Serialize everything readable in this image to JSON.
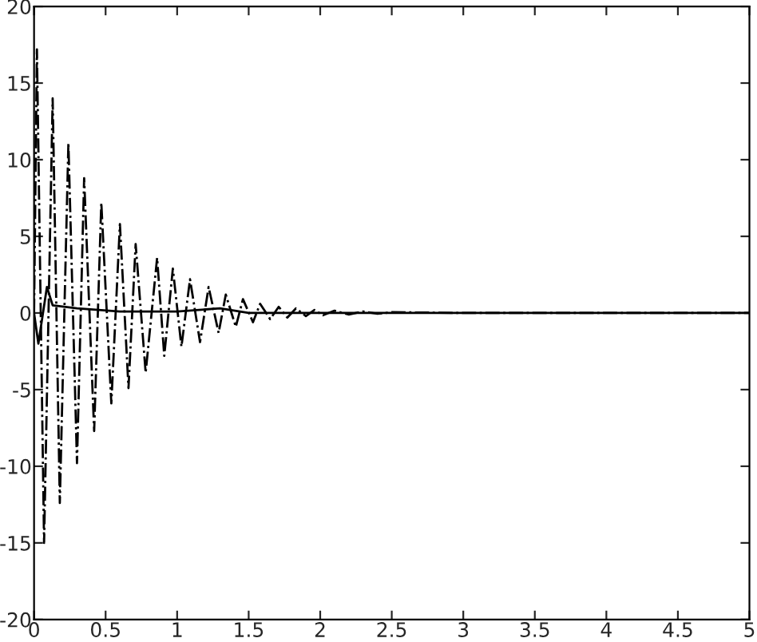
{
  "chart_data": {
    "type": "line",
    "xlim": [
      0,
      5
    ],
    "ylim": [
      -20,
      20
    ],
    "xticks": [
      0,
      0.5,
      1,
      1.5,
      2,
      2.5,
      3,
      3.5,
      4,
      4.5,
      5
    ],
    "yticks": [
      -20,
      -15,
      -10,
      -5,
      0,
      5,
      10,
      15,
      20
    ],
    "grid": false,
    "legend": false,
    "marker": "none",
    "series": [
      {
        "color": "#000000",
        "line_style": "dashed",
        "x": [
          0,
          0.02,
          0.07,
          0.13,
          0.18,
          0.24,
          0.3,
          0.35,
          0.42,
          0.47,
          0.54,
          0.6,
          0.66,
          0.71,
          0.78,
          0.86,
          0.91,
          0.97,
          1.03,
          1.09,
          1.16,
          1.22,
          1.29,
          1.34,
          1.41,
          1.46,
          1.53,
          1.58,
          1.65,
          1.71,
          1.77,
          1.83,
          1.9,
          1.96,
          2.02,
          2.1,
          2.2,
          2.3,
          2.4,
          2.5,
          3,
          5
        ],
        "values": [
          0,
          17.2,
          -15,
          14,
          -12.4,
          11.1,
          -9.8,
          8.8,
          -7.7,
          7.2,
          -5.9,
          5.8,
          -4.9,
          4.5,
          -3.9,
          3.6,
          -2.8,
          2.9,
          -2.2,
          2.2,
          -1.9,
          1.7,
          -1.3,
          1.2,
          -0.9,
          0.9,
          -0.6,
          0.6,
          -0.4,
          0.4,
          -0.3,
          0.3,
          -0.2,
          0.2,
          -0.15,
          0.15,
          -0.1,
          0.1,
          -0.05,
          0.05,
          0,
          0
        ]
      },
      {
        "color": "#000000",
        "line_style": "solid",
        "x": [
          0,
          0.03,
          0.09,
          0.13,
          0.3,
          0.6,
          1,
          1.3,
          1.5,
          5
        ],
        "values": [
          0,
          -2,
          1.7,
          0.5,
          0.3,
          0.1,
          0.1,
          0.3,
          0,
          0
        ]
      }
    ]
  }
}
